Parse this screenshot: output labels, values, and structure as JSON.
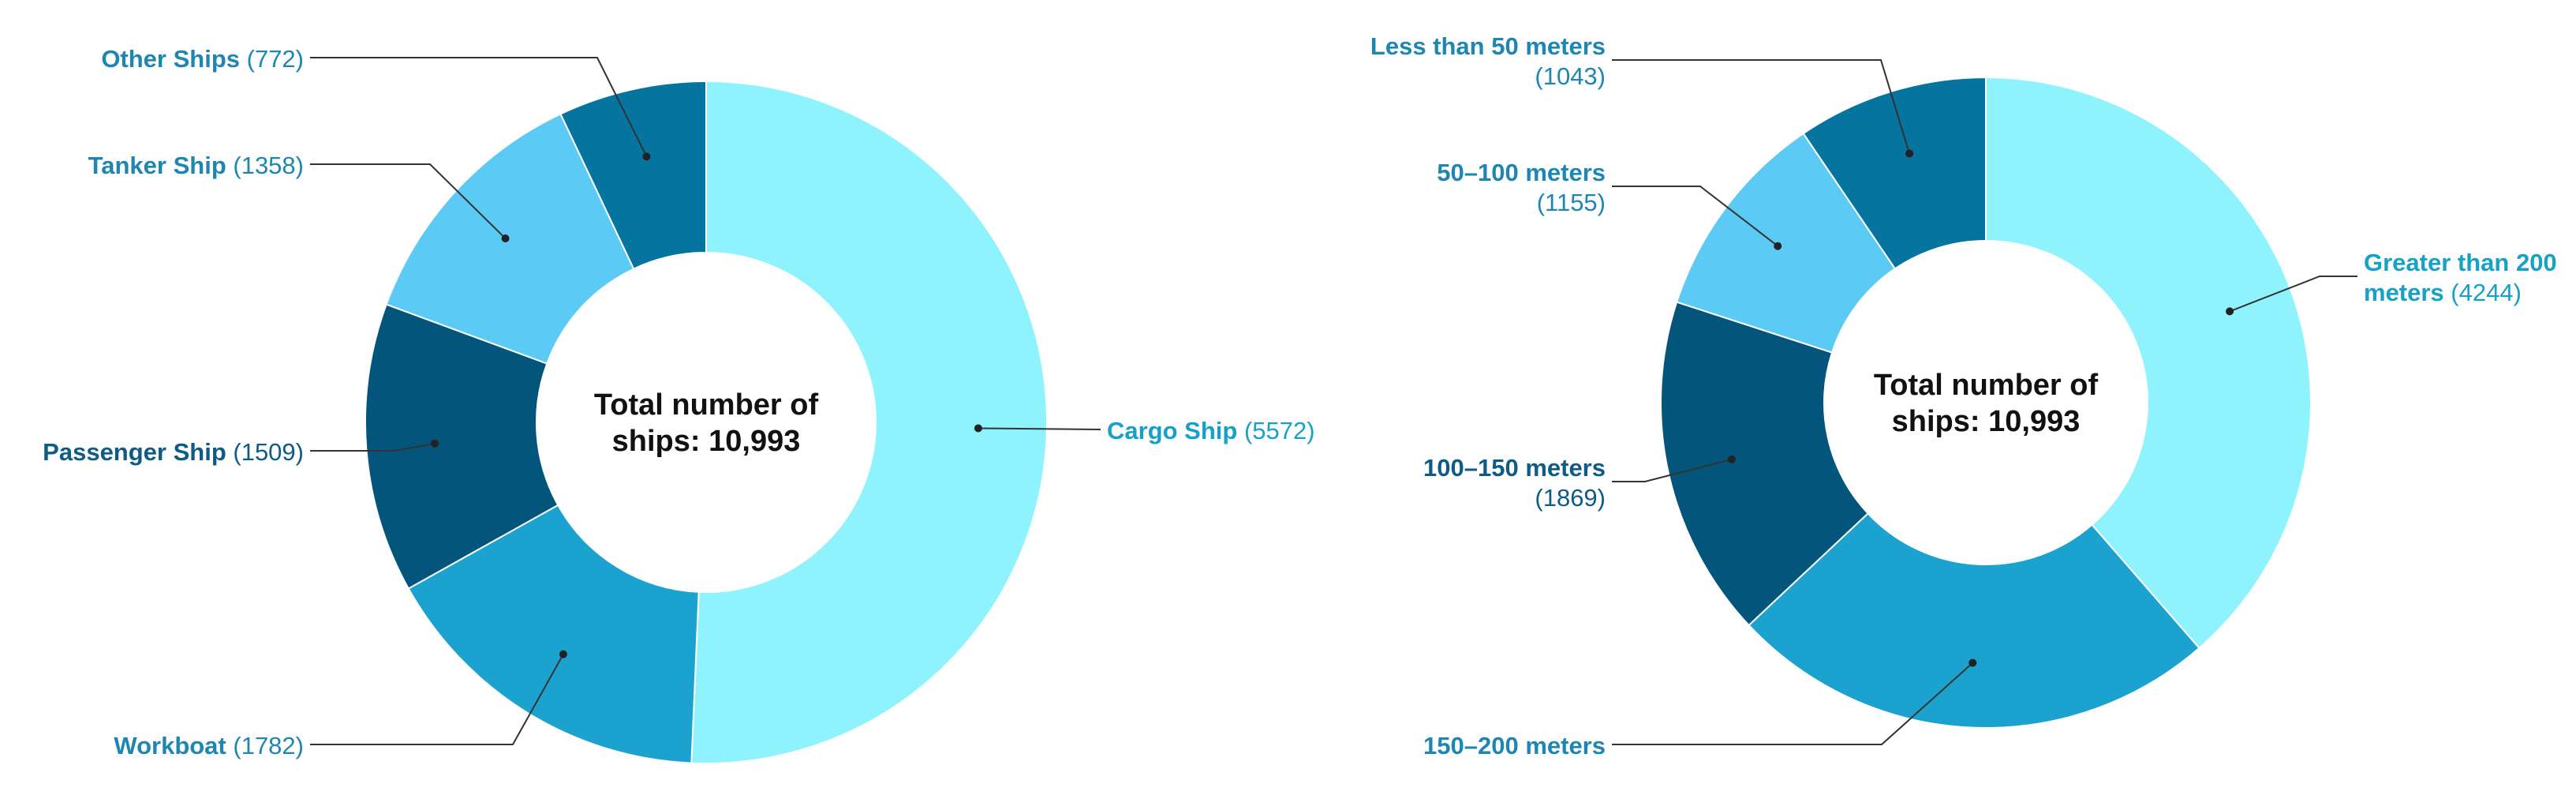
{
  "chart_data": [
    {
      "type": "pie",
      "donut": true,
      "title": "",
      "center_label": [
        "Total number of",
        "ships: 10,993"
      ],
      "categories": [
        "Cargo Ship",
        "Workboat",
        "Passenger Ship",
        "Tanker Ship",
        "Other Ships"
      ],
      "values": [
        5572,
        1782,
        1509,
        1358,
        772
      ],
      "colors": [
        "#8EF3FD",
        "#1BA2CF",
        "#04557B",
        "#5BCBF5",
        "#05749F"
      ],
      "value_labels": [
        "(5572)",
        "(1782)",
        "(1509)",
        "(1358)",
        "(772)"
      ]
    },
    {
      "type": "pie",
      "donut": true,
      "title": "",
      "center_label": [
        "Total number of",
        "ships: 10,993"
      ],
      "categories": [
        "Greater than 200 meters",
        "150–200 meters",
        "100–150 meters",
        "50–100 meters",
        "Less than 50 meters"
      ],
      "values": [
        4244,
        2682,
        1869,
        1155,
        1043
      ],
      "colors": [
        "#8EF3FD",
        "#1BA2CF",
        "#04557B",
        "#5BCBF5",
        "#05749F"
      ],
      "label_lines": [
        [
          "Greater than 200",
          "meters"
        ],
        [
          "150–200 meters"
        ],
        [
          "100–150 meters"
        ],
        [
          "50–100 meters"
        ],
        [
          "Less than 50 meters"
        ]
      ],
      "value_labels": [
        "(4244)",
        "",
        "(1869)",
        "(1155)",
        "(1043)"
      ]
    }
  ]
}
